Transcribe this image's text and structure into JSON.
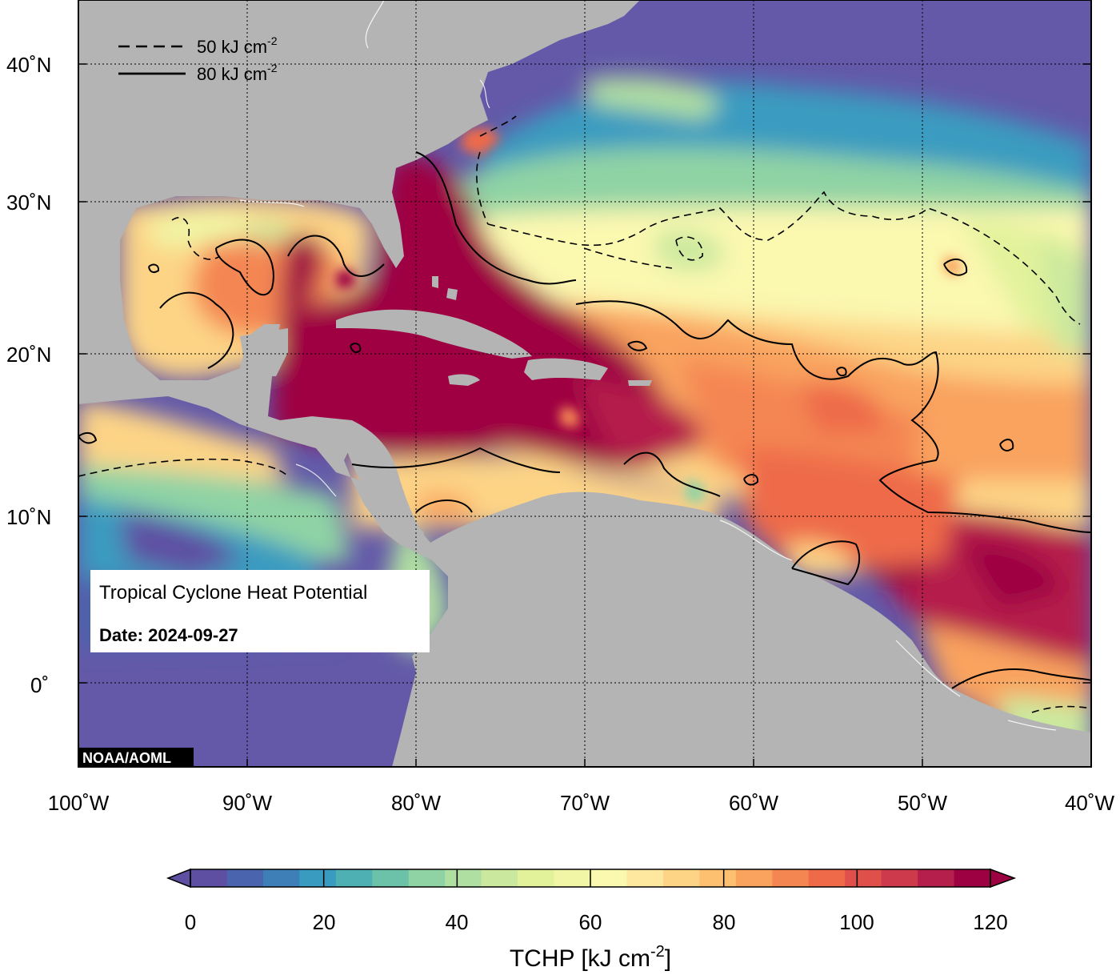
{
  "map": {
    "title": "Tropical Cyclone Heat Potential",
    "date_label": "Date: 2024-09-27",
    "credit": "NOAA/AOML",
    "lon_labels": [
      "100˚W",
      "90˚W",
      "80˚W",
      "70˚W",
      "60˚W",
      "50˚W",
      "40˚W"
    ],
    "lat_labels": [
      "40˚N",
      "30˚N",
      "20˚N",
      "10˚N",
      "0˚"
    ],
    "legend": {
      "dashed": {
        "value": "50 kJ cm",
        "sup": "-2"
      },
      "solid": {
        "value": "80 kJ cm",
        "sup": "-2"
      }
    }
  },
  "colorbar": {
    "label_main": "TCHP [kJ cm",
    "label_sup": "-2",
    "label_close": "]",
    "ticks": [
      "0",
      "20",
      "40",
      "60",
      "80",
      "100",
      "120"
    ],
    "colors": [
      "#5e4fa2",
      "#4a64ad",
      "#3f7fb8",
      "#3a9bc0",
      "#4fb0b4",
      "#6cc2a8",
      "#8fd3a4",
      "#b0dfa2",
      "#cbe99e",
      "#e2f29b",
      "#f0f6a6",
      "#fbf8b0",
      "#fee8a0",
      "#fdd486",
      "#fcc070",
      "#f9a35e",
      "#f48652",
      "#ee6a48",
      "#e0504a",
      "#cc3a4b",
      "#b51f4b",
      "#9e0142"
    ]
  },
  "palette": {
    "land": "#b4b4b4",
    "cold_ocean": "#6359a8",
    "hot_core": "#9e0142"
  }
}
